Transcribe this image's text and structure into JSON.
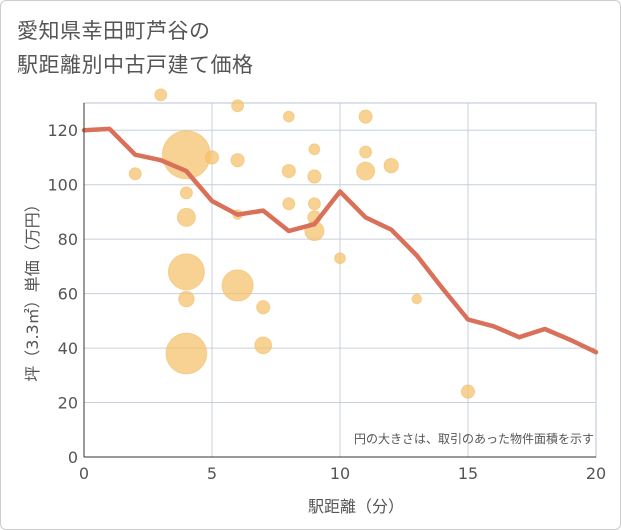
{
  "title_line1": "愛知県幸田町芦谷の",
  "title_line2": "駅距離別中古戸建て価格",
  "chart_data": {
    "type": "scatter",
    "title": "愛知県幸田町芦谷の 駅距離別中古戸建て価格",
    "xlabel": "駅距離（分）",
    "ylabel": "坪（3.3㎡）単価（万円）",
    "xlim": [
      0,
      20
    ],
    "ylim": [
      0,
      130
    ],
    "xticks": [
      0,
      5,
      10,
      15,
      20
    ],
    "yticks": [
      0,
      20,
      40,
      60,
      80,
      100,
      120
    ],
    "grid": true,
    "note": "円の大きさは、取引のあった物件面積を示す",
    "bubble_color": "#f5c06a",
    "line_color": "#d9705a",
    "points": [
      {
        "x": 2,
        "y": 104,
        "s": 1.0
      },
      {
        "x": 3,
        "y": 133,
        "s": 1.0
      },
      {
        "x": 4,
        "y": 111,
        "s": 4.0
      },
      {
        "x": 4,
        "y": 97,
        "s": 1.0
      },
      {
        "x": 4,
        "y": 88,
        "s": 1.5
      },
      {
        "x": 4,
        "y": 68,
        "s": 3.0
      },
      {
        "x": 4,
        "y": 58,
        "s": 1.3
      },
      {
        "x": 4,
        "y": 38,
        "s": 3.4
      },
      {
        "x": 5,
        "y": 110,
        "s": 1.1
      },
      {
        "x": 6,
        "y": 129,
        "s": 1.0
      },
      {
        "x": 6,
        "y": 109,
        "s": 1.1
      },
      {
        "x": 6,
        "y": 89,
        "s": 0.8
      },
      {
        "x": 6,
        "y": 63,
        "s": 2.6
      },
      {
        "x": 7,
        "y": 55,
        "s": 1.1
      },
      {
        "x": 7,
        "y": 41,
        "s": 1.4
      },
      {
        "x": 8,
        "y": 125,
        "s": 0.9
      },
      {
        "x": 8,
        "y": 105,
        "s": 1.1
      },
      {
        "x": 8,
        "y": 93,
        "s": 1.0
      },
      {
        "x": 9,
        "y": 113,
        "s": 0.9
      },
      {
        "x": 9,
        "y": 103,
        "s": 1.1
      },
      {
        "x": 9,
        "y": 93,
        "s": 1.0
      },
      {
        "x": 9,
        "y": 88,
        "s": 1.1
      },
      {
        "x": 9,
        "y": 83,
        "s": 1.6
      },
      {
        "x": 10,
        "y": 73,
        "s": 0.9
      },
      {
        "x": 11,
        "y": 125,
        "s": 1.1
      },
      {
        "x": 11,
        "y": 112,
        "s": 1.0
      },
      {
        "x": 11,
        "y": 105,
        "s": 1.5
      },
      {
        "x": 12,
        "y": 107,
        "s": 1.2
      },
      {
        "x": 13,
        "y": 58,
        "s": 0.8
      },
      {
        "x": 15,
        "y": 24,
        "s": 1.1
      }
    ],
    "trend": {
      "x": [
        0,
        1,
        2,
        3,
        4,
        5,
        6,
        7,
        8,
        9,
        10,
        11,
        12,
        13,
        14,
        15,
        16,
        17,
        18,
        19,
        20
      ],
      "y": [
        120,
        120.5,
        111,
        109,
        105,
        94,
        89,
        90.5,
        83,
        85.5,
        97.5,
        88,
        83.5,
        74,
        62,
        50.5,
        48,
        44,
        47,
        43,
        38.5
      ]
    }
  }
}
